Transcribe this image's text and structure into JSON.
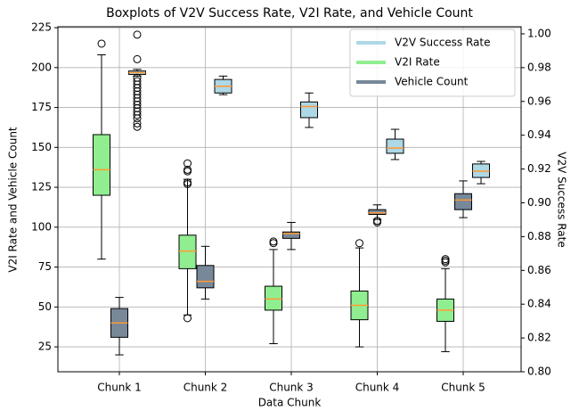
{
  "chart_data": {
    "type": "boxplot",
    "title": "Boxplots of V2V Success Rate, V2I Rate, and Vehicle Count",
    "xlabel": "Data Chunk",
    "ylabel": "V2I Rate and Vehicle Count",
    "y2label": "V2V Success Rate",
    "categories": [
      "Chunk 1",
      "Chunk 2",
      "Chunk 3",
      "Chunk 4",
      "Chunk 5"
    ],
    "ylim": [
      9.4,
      225.6
    ],
    "yticks": [
      25,
      50,
      75,
      100,
      125,
      150,
      175,
      200,
      225
    ],
    "y2lim": [
      0.8,
      1.0042
    ],
    "y2ticks": [
      {
        "value": 0.8,
        "label": "0.80"
      },
      {
        "value": 0.82,
        "label": "0.82"
      },
      {
        "value": 0.84,
        "label": "0.84"
      },
      {
        "value": 0.86,
        "label": "0.86"
      },
      {
        "value": 0.88,
        "label": "0.88"
      },
      {
        "value": 0.9,
        "label": "0.90"
      },
      {
        "value": 0.92,
        "label": "0.92"
      },
      {
        "value": 0.94,
        "label": "0.94"
      },
      {
        "value": 0.96,
        "label": "0.96"
      },
      {
        "value": 0.98,
        "label": "0.98"
      },
      {
        "value": 1.0,
        "label": "1.00"
      }
    ],
    "grid": true,
    "legend": "upper right",
    "median_color": "#ff9933",
    "series": [
      {
        "name": "V2V Success Rate",
        "color": "#add8e6",
        "axis": "y2",
        "boxes": [
          {
            "whislo": 0.975,
            "q1": 0.976,
            "med": 0.977,
            "q3": 0.978,
            "whishi": 0.979,
            "fliers": [
              0.9995,
              0.985,
              0.974,
              0.972,
              0.97,
              0.968,
              0.966,
              0.964,
              0.962,
              0.96,
              0.958,
              0.956,
              0.954,
              0.952,
              0.95,
              0.947,
              0.945
            ]
          },
          {
            "whislo": 0.964,
            "q1": 0.965,
            "med": 0.969,
            "q3": 0.973,
            "whishi": 0.975,
            "fliers": []
          },
          {
            "whislo": 0.9446,
            "q1": 0.9504,
            "med": 0.957,
            "q3": 0.9597,
            "whishi": 0.965,
            "fliers": []
          },
          {
            "whislo": 0.9256,
            "q1": 0.9293,
            "med": 0.9324,
            "q3": 0.9377,
            "whishi": 0.9435,
            "fliers": []
          },
          {
            "whislo": 0.9113,
            "q1": 0.915,
            "med": 0.9187,
            "q3": 0.923,
            "whishi": 0.9245,
            "fliers": []
          }
        ]
      },
      {
        "name": "V2I Rate",
        "color": "#90ee90",
        "boxes": [
          {
            "whislo": 80,
            "q1": 120,
            "med": 136,
            "q3": 158,
            "whishi": 208,
            "fliers": [
              215
            ]
          },
          {
            "whislo": 45,
            "q1": 74,
            "med": 85,
            "q3": 95,
            "whishi": 130,
            "fliers": [
              43,
              127,
              128,
              135,
              136,
              140
            ]
          },
          {
            "whislo": 27,
            "q1": 48,
            "med": 55,
            "q3": 63,
            "whishi": 86,
            "fliers": [
              90,
              91
            ]
          },
          {
            "whislo": 25,
            "q1": 42,
            "med": 51,
            "q3": 60,
            "whishi": 87,
            "fliers": [
              90
            ]
          },
          {
            "whislo": 22,
            "q1": 41,
            "med": 48,
            "q3": 55,
            "whishi": 74,
            "fliers": [
              78,
              79,
              80
            ]
          }
        ]
      },
      {
        "name": "Vehicle Count",
        "color": "#778899",
        "boxes": [
          {
            "whislo": 20,
            "q1": 31,
            "med": 40,
            "q3": 49,
            "whishi": 56,
            "fliers": []
          },
          {
            "whislo": 55,
            "q1": 62,
            "med": 66,
            "q3": 76,
            "whishi": 88,
            "fliers": []
          },
          {
            "whislo": 86,
            "q1": 93,
            "med": 96,
            "q3": 97,
            "whishi": 103,
            "fliers": []
          },
          {
            "whislo": 105,
            "q1": 108,
            "med": 109,
            "q3": 111,
            "whishi": 114,
            "fliers": [
              103,
              104
            ]
          },
          {
            "whislo": 106,
            "q1": 111,
            "med": 117,
            "q3": 121,
            "whishi": 129,
            "fliers": []
          }
        ]
      }
    ]
  }
}
